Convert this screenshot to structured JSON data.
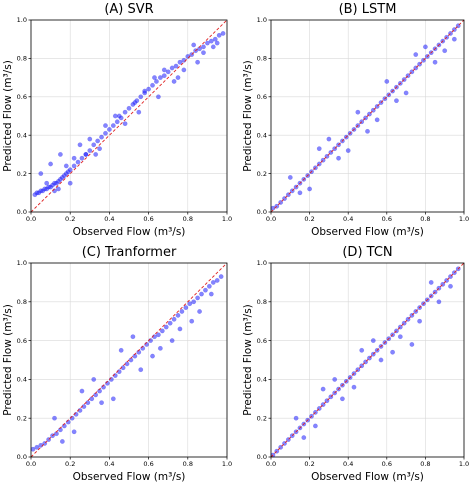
{
  "chart_data": [
    {
      "type": "scatter",
      "title": "(A) SVR",
      "xlabel": "Observed Flow (m³/s)",
      "ylabel": "Predicted Flow (m³/s)",
      "xlim": [
        0.0,
        1.0
      ],
      "ylim": [
        0.0,
        1.0
      ],
      "xticks": [
        "0.0",
        "0.2",
        "0.4",
        "0.6",
        "0.8",
        "1.0"
      ],
      "yticks": [
        "0.0",
        "0.2",
        "0.4",
        "0.6",
        "0.8",
        "1.0"
      ],
      "grid": true,
      "reference_line": "y = x (red dashed)",
      "points_color": "#1f1fff",
      "x": [
        0.02,
        0.03,
        0.04,
        0.05,
        0.06,
        0.07,
        0.08,
        0.09,
        0.1,
        0.11,
        0.12,
        0.13,
        0.14,
        0.15,
        0.16,
        0.17,
        0.18,
        0.19,
        0.2,
        0.22,
        0.24,
        0.26,
        0.28,
        0.3,
        0.32,
        0.34,
        0.36,
        0.38,
        0.4,
        0.42,
        0.44,
        0.46,
        0.48,
        0.5,
        0.52,
        0.54,
        0.56,
        0.58,
        0.6,
        0.62,
        0.64,
        0.66,
        0.68,
        0.7,
        0.72,
        0.74,
        0.76,
        0.78,
        0.8,
        0.82,
        0.84,
        0.86,
        0.88,
        0.9,
        0.92,
        0.94,
        0.96,
        0.98,
        0.05,
        0.1,
        0.15,
        0.2,
        0.25,
        0.3,
        0.35,
        0.45,
        0.55,
        0.65,
        0.75,
        0.85,
        0.95,
        0.12,
        0.18,
        0.28,
        0.38,
        0.48,
        0.58,
        0.68,
        0.78,
        0.88,
        0.08,
        0.14,
        0.22,
        0.33,
        0.43,
        0.53,
        0.63,
        0.73,
        0.83,
        0.93
      ],
      "y": [
        0.09,
        0.1,
        0.1,
        0.11,
        0.11,
        0.12,
        0.12,
        0.13,
        0.13,
        0.14,
        0.15,
        0.15,
        0.16,
        0.17,
        0.18,
        0.19,
        0.2,
        0.21,
        0.22,
        0.24,
        0.26,
        0.28,
        0.3,
        0.32,
        0.35,
        0.37,
        0.39,
        0.41,
        0.43,
        0.45,
        0.47,
        0.49,
        0.52,
        0.54,
        0.56,
        0.58,
        0.6,
        0.62,
        0.64,
        0.66,
        0.68,
        0.7,
        0.71,
        0.73,
        0.75,
        0.76,
        0.78,
        0.79,
        0.81,
        0.82,
        0.84,
        0.85,
        0.86,
        0.88,
        0.89,
        0.9,
        0.92,
        0.93,
        0.2,
        0.25,
        0.3,
        0.15,
        0.35,
        0.38,
        0.33,
        0.5,
        0.52,
        0.6,
        0.7,
        0.78,
        0.88,
        0.11,
        0.24,
        0.3,
        0.45,
        0.46,
        0.63,
        0.74,
        0.74,
        0.83,
        0.15,
        0.12,
        0.28,
        0.3,
        0.5,
        0.57,
        0.7,
        0.68,
        0.87,
        0.86
      ]
    },
    {
      "type": "scatter",
      "title": "(B) LSTM",
      "xlabel": "Observed Flow (m³/s)",
      "ylabel": "Predicted Flow (m³/s)",
      "xlim": [
        0.0,
        1.0
      ],
      "ylim": [
        0.0,
        1.0
      ],
      "xticks": [
        "0.0",
        "0.2",
        "0.4",
        "0.6",
        "0.8",
        "1.0"
      ],
      "yticks": [
        "0.0",
        "0.2",
        "0.4",
        "0.6",
        "0.8",
        "1.0"
      ],
      "grid": true,
      "reference_line": "y = x (red dashed)",
      "points_color": "#1f1fff",
      "x": [
        0.01,
        0.03,
        0.05,
        0.07,
        0.09,
        0.11,
        0.13,
        0.15,
        0.17,
        0.19,
        0.21,
        0.23,
        0.25,
        0.27,
        0.29,
        0.31,
        0.33,
        0.35,
        0.37,
        0.39,
        0.41,
        0.43,
        0.45,
        0.47,
        0.49,
        0.51,
        0.53,
        0.55,
        0.57,
        0.59,
        0.61,
        0.63,
        0.65,
        0.67,
        0.69,
        0.71,
        0.73,
        0.75,
        0.77,
        0.79,
        0.81,
        0.83,
        0.85,
        0.87,
        0.89,
        0.91,
        0.93,
        0.95,
        0.97,
        0.1,
        0.2,
        0.3,
        0.4,
        0.5,
        0.6,
        0.7,
        0.8,
        0.9,
        0.15,
        0.25,
        0.35,
        0.45,
        0.55,
        0.65,
        0.75,
        0.85,
        0.95
      ],
      "y": [
        0.02,
        0.03,
        0.05,
        0.07,
        0.09,
        0.11,
        0.13,
        0.15,
        0.17,
        0.19,
        0.21,
        0.23,
        0.25,
        0.27,
        0.29,
        0.31,
        0.33,
        0.35,
        0.37,
        0.39,
        0.41,
        0.43,
        0.45,
        0.47,
        0.49,
        0.51,
        0.53,
        0.55,
        0.57,
        0.59,
        0.61,
        0.63,
        0.65,
        0.67,
        0.69,
        0.71,
        0.73,
        0.75,
        0.77,
        0.79,
        0.81,
        0.83,
        0.85,
        0.87,
        0.89,
        0.91,
        0.93,
        0.95,
        0.97,
        0.18,
        0.12,
        0.38,
        0.32,
        0.42,
        0.68,
        0.62,
        0.86,
        0.84,
        0.1,
        0.33,
        0.28,
        0.52,
        0.48,
        0.58,
        0.82,
        0.78,
        0.9
      ]
    },
    {
      "type": "scatter",
      "title": "(C) Tranformer",
      "xlabel": "Observed Flow (m³/s)",
      "ylabel": "Predicted Flow (m³/s)",
      "xlim": [
        0.0,
        1.0
      ],
      "ylim": [
        0.0,
        1.0
      ],
      "xticks": [
        "0.0",
        "0.2",
        "0.4",
        "0.6",
        "0.8",
        "1.0"
      ],
      "yticks": [
        "0.0",
        "0.2",
        "0.4",
        "0.6",
        "0.8",
        "1.0"
      ],
      "grid": true,
      "reference_line": "y = x (red dashed)",
      "points_color": "#1f1fff",
      "x": [
        0.01,
        0.03,
        0.05,
        0.07,
        0.09,
        0.11,
        0.13,
        0.15,
        0.17,
        0.19,
        0.21,
        0.23,
        0.25,
        0.27,
        0.29,
        0.31,
        0.33,
        0.35,
        0.37,
        0.39,
        0.41,
        0.43,
        0.45,
        0.47,
        0.49,
        0.51,
        0.53,
        0.55,
        0.57,
        0.59,
        0.61,
        0.63,
        0.65,
        0.67,
        0.69,
        0.71,
        0.73,
        0.75,
        0.77,
        0.79,
        0.81,
        0.83,
        0.85,
        0.87,
        0.89,
        0.91,
        0.93,
        0.95,
        0.97,
        0.12,
        0.22,
        0.32,
        0.42,
        0.52,
        0.62,
        0.72,
        0.82,
        0.92,
        0.16,
        0.26,
        0.36,
        0.46,
        0.56,
        0.66,
        0.76,
        0.86
      ],
      "y": [
        0.04,
        0.05,
        0.06,
        0.07,
        0.09,
        0.11,
        0.12,
        0.14,
        0.16,
        0.18,
        0.2,
        0.22,
        0.24,
        0.26,
        0.28,
        0.3,
        0.32,
        0.34,
        0.36,
        0.38,
        0.4,
        0.42,
        0.44,
        0.46,
        0.48,
        0.5,
        0.52,
        0.54,
        0.56,
        0.58,
        0.6,
        0.62,
        0.63,
        0.65,
        0.67,
        0.69,
        0.71,
        0.73,
        0.75,
        0.77,
        0.79,
        0.8,
        0.82,
        0.84,
        0.86,
        0.88,
        0.9,
        0.91,
        0.93,
        0.2,
        0.13,
        0.4,
        0.3,
        0.62,
        0.52,
        0.6,
        0.7,
        0.84,
        0.08,
        0.34,
        0.28,
        0.55,
        0.45,
        0.56,
        0.66,
        0.75
      ]
    },
    {
      "type": "scatter",
      "title": "(D) TCN",
      "xlabel": "Observed Flow (m³/s)",
      "ylabel": "Predicted Flow (m³/s)",
      "xlim": [
        0.0,
        1.0
      ],
      "ylim": [
        0.0,
        1.0
      ],
      "xticks": [
        "0.0",
        "0.2",
        "0.4",
        "0.6",
        "0.8",
        "1.0"
      ],
      "yticks": [
        "0.0",
        "0.2",
        "0.4",
        "0.6",
        "0.8",
        "1.0"
      ],
      "grid": true,
      "reference_line": "y = x (red dashed)",
      "points_color": "#1f1fff",
      "x": [
        0.01,
        0.03,
        0.05,
        0.07,
        0.09,
        0.11,
        0.13,
        0.15,
        0.17,
        0.19,
        0.21,
        0.23,
        0.25,
        0.27,
        0.29,
        0.31,
        0.33,
        0.35,
        0.37,
        0.39,
        0.41,
        0.43,
        0.45,
        0.47,
        0.49,
        0.51,
        0.53,
        0.55,
        0.57,
        0.59,
        0.61,
        0.63,
        0.65,
        0.67,
        0.69,
        0.71,
        0.73,
        0.75,
        0.77,
        0.79,
        0.81,
        0.83,
        0.85,
        0.87,
        0.89,
        0.91,
        0.93,
        0.95,
        0.97,
        0.13,
        0.23,
        0.33,
        0.43,
        0.53,
        0.63,
        0.73,
        0.83,
        0.93,
        0.17,
        0.27,
        0.37,
        0.47,
        0.57,
        0.67,
        0.77,
        0.87
      ],
      "y": [
        0.01,
        0.03,
        0.05,
        0.07,
        0.09,
        0.11,
        0.13,
        0.15,
        0.17,
        0.19,
        0.21,
        0.23,
        0.25,
        0.27,
        0.29,
        0.31,
        0.33,
        0.35,
        0.37,
        0.39,
        0.41,
        0.43,
        0.45,
        0.47,
        0.49,
        0.51,
        0.53,
        0.55,
        0.57,
        0.59,
        0.61,
        0.63,
        0.65,
        0.67,
        0.69,
        0.71,
        0.73,
        0.75,
        0.77,
        0.79,
        0.81,
        0.83,
        0.85,
        0.87,
        0.89,
        0.91,
        0.93,
        0.95,
        0.97,
        0.2,
        0.16,
        0.4,
        0.36,
        0.6,
        0.54,
        0.58,
        0.9,
        0.88,
        0.1,
        0.35,
        0.3,
        0.55,
        0.5,
        0.62,
        0.7,
        0.8
      ]
    }
  ]
}
